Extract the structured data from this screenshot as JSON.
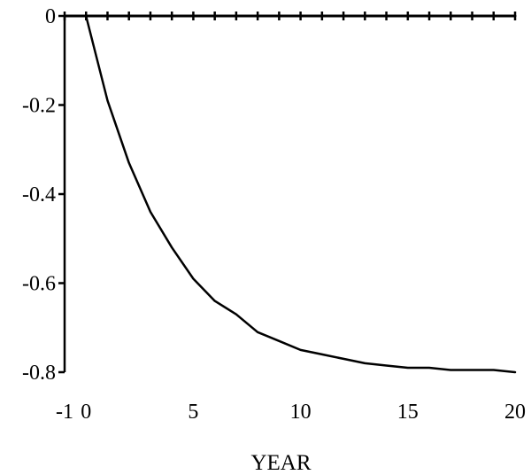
{
  "chart_data": {
    "type": "line",
    "title": "",
    "xlabel": "YEAR",
    "ylabel": "",
    "xlim": [
      -1,
      20
    ],
    "ylim": [
      -0.8,
      0
    ],
    "x_ticks": [
      -1,
      0,
      5,
      10,
      15,
      20
    ],
    "x_tick_labels": [
      "-1",
      "0",
      "5",
      "10",
      "15",
      "20"
    ],
    "y_ticks": [
      0,
      -0.2,
      -0.4,
      -0.6,
      -0.8
    ],
    "y_tick_labels": [
      "0",
      "-0.2",
      "-0.4",
      "-0.6",
      "-0.8"
    ],
    "grid": false,
    "legend": "none",
    "series": [
      {
        "color": "#000000",
        "x": [
          -1,
          0,
          1,
          2,
          3,
          4,
          5,
          6,
          7,
          8,
          9,
          10,
          11,
          12,
          13,
          14,
          15,
          16,
          17,
          18,
          19,
          20
        ],
        "y": [
          0,
          0,
          0,
          0,
          0,
          0,
          0,
          0,
          0,
          0,
          0,
          0,
          0,
          0,
          0,
          0,
          0,
          0,
          0,
          0,
          0,
          0
        ]
      },
      {
        "color": "#000000",
        "x": [
          0,
          1,
          2,
          3,
          4,
          5,
          6,
          7,
          8,
          9,
          10,
          11,
          12,
          13,
          14,
          15,
          16,
          17,
          18,
          19,
          20
        ],
        "y": [
          0,
          -0.19,
          -0.33,
          -0.44,
          -0.52,
          -0.59,
          -0.64,
          -0.67,
          -0.71,
          -0.73,
          -0.75,
          -0.76,
          -0.77,
          -0.78,
          -0.785,
          -0.79,
          -0.79,
          -0.795,
          -0.795,
          -0.795,
          -0.8
        ]
      }
    ]
  }
}
